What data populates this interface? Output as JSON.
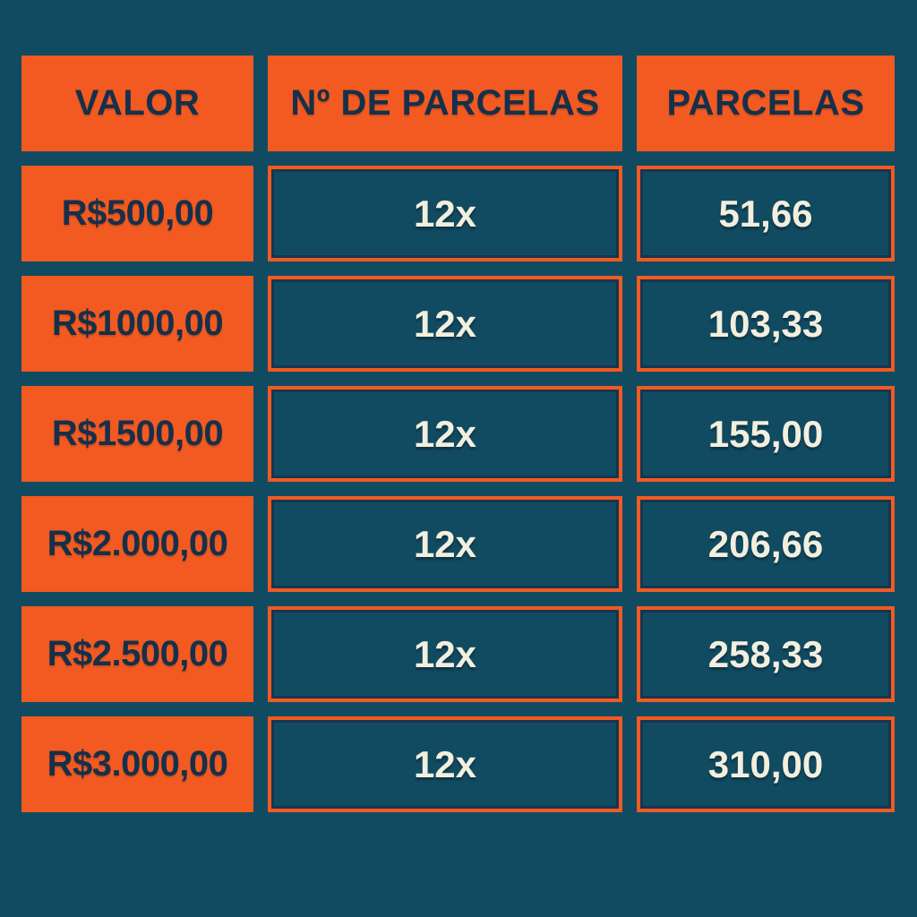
{
  "colors": {
    "background": "#114B61",
    "accent_orange": "#F25A21",
    "navy_text": "#16304A",
    "cream_text": "#F2EFDF",
    "inner_border_navy": "#17344F"
  },
  "table": {
    "headers": [
      "VALOR",
      "Nº DE PARCELAS",
      "PARCELAS"
    ],
    "rows": [
      {
        "valor": "R$500,00",
        "installments": "12x",
        "installment_value": "51,66"
      },
      {
        "valor": "R$1000,00",
        "installments": "12x",
        "installment_value": "103,33"
      },
      {
        "valor": "R$1500,00",
        "installments": "12x",
        "installment_value": "155,00"
      },
      {
        "valor": "R$2.000,00",
        "installments": "12x",
        "installment_value": "206,66"
      },
      {
        "valor": "R$2.500,00",
        "installments": "12x",
        "installment_value": "258,33"
      },
      {
        "valor": "R$3.000,00",
        "installments": "12x",
        "installment_value": "310,00"
      }
    ]
  },
  "chart_data": {
    "type": "table",
    "columns": [
      "VALOR",
      "Nº DE PARCELAS",
      "PARCELAS"
    ],
    "rows": [
      [
        "R$500,00",
        "12x",
        "51,66"
      ],
      [
        "R$1000,00",
        "12x",
        "103,33"
      ],
      [
        "R$1500,00",
        "12x",
        "155,00"
      ],
      [
        "R$2.000,00",
        "12x",
        "206,66"
      ],
      [
        "R$2.500,00",
        "12x",
        "258,33"
      ],
      [
        "R$3.000,00",
        "12x",
        "310,00"
      ]
    ]
  }
}
